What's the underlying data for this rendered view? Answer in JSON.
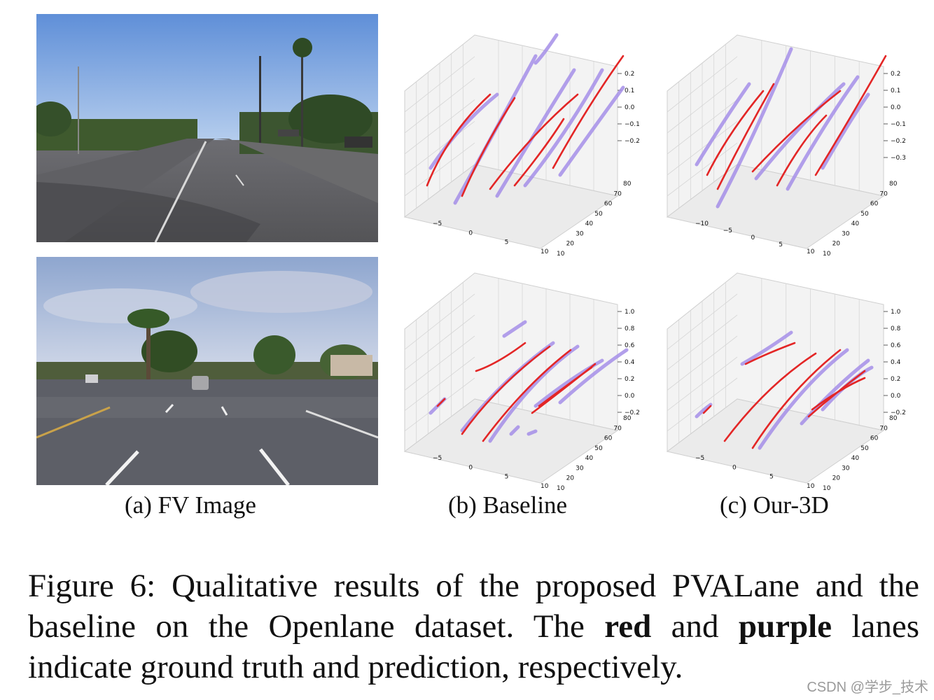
{
  "subfigures": [
    {
      "label": "(a) FV Image"
    },
    {
      "label": "(b) Baseline"
    },
    {
      "label": "(c) Our-3D"
    }
  ],
  "caption": {
    "prefix": "Figure 6: Qualitative results of the proposed PVALane and the baseline on the Openlane dataset. The ",
    "bold_red": "red",
    "and": " and ",
    "bold_purple": "purple",
    "suffix": " lanes indicate ground truth and prediction, respectively."
  },
  "watermark": "CSDN @学步_技术",
  "colors": {
    "ground_truth": "#e32626",
    "prediction": "#a58ee8"
  },
  "plots": [
    {
      "id": "top-baseline",
      "z_ticks": [
        "0.2",
        "0.1",
        "0.0",
        "−0.1",
        "−0.2"
      ],
      "y_ticks": [
        "80",
        "70",
        "60",
        "50",
        "40",
        "30",
        "20",
        "10"
      ],
      "x_ticks": [
        "−5",
        "0",
        "5",
        "10"
      ]
    },
    {
      "id": "top-ours",
      "z_ticks": [
        "0.2",
        "0.1",
        "0.0",
        "−0.1",
        "−0.2",
        "−0.3"
      ],
      "y_ticks": [
        "80",
        "70",
        "60",
        "50",
        "40",
        "30",
        "20",
        "10"
      ],
      "x_ticks": [
        "−10",
        "−5",
        "0",
        "5",
        "10"
      ]
    },
    {
      "id": "bottom-baseline",
      "z_ticks": [
        "1.0",
        "0.8",
        "0.6",
        "0.4",
        "0.2",
        "0.0",
        "−0.2"
      ],
      "y_ticks": [
        "80",
        "70",
        "60",
        "50",
        "40",
        "30",
        "20",
        "10"
      ],
      "x_ticks": [
        "−5",
        "0",
        "5",
        "10"
      ]
    },
    {
      "id": "bottom-ours",
      "z_ticks": [
        "1.0",
        "0.8",
        "0.6",
        "0.4",
        "0.2",
        "0.0",
        "−0.2"
      ],
      "y_ticks": [
        "80",
        "70",
        "60",
        "50",
        "40",
        "30",
        "20",
        "10"
      ],
      "x_ticks": [
        "−5",
        "0",
        "5",
        "10"
      ]
    }
  ]
}
